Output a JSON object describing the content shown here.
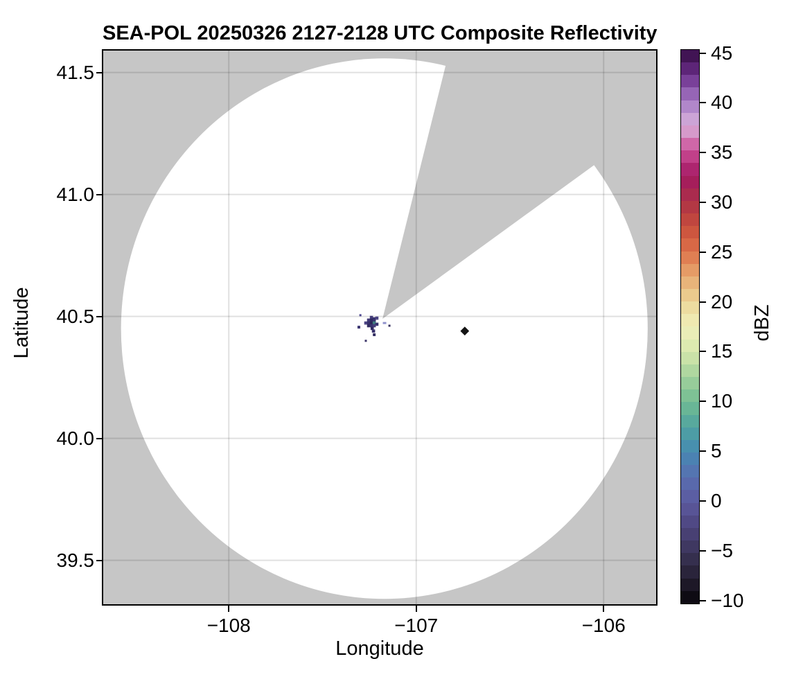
{
  "figure": {
    "title": "SEA-POL 20250326 2127-2128 UTC Composite Reflectivity",
    "xlabel": "Longitude",
    "ylabel": "Latitude",
    "colorbar_label": "dBZ"
  },
  "chart_data": {
    "type": "heatmap",
    "title": "SEA-POL 20250326 2127-2128 UTC Composite Reflectivity",
    "xlabel": "Longitude",
    "ylabel": "Latitude",
    "xlim": [
      -108.67,
      -105.72
    ],
    "ylim": [
      39.32,
      41.59
    ],
    "grid": true,
    "grid_color": "rgba(0,0,0,0.12)",
    "no_data_color": "#c6c6c6",
    "x_ticks": [
      {
        "value": -108,
        "label": "−108"
      },
      {
        "value": -107,
        "label": "−107"
      },
      {
        "value": -106,
        "label": "−106"
      }
    ],
    "y_ticks": [
      {
        "value": 41.5,
        "label": "41.5"
      },
      {
        "value": 41.0,
        "label": "41.0"
      },
      {
        "value": 40.5,
        "label": "40.5"
      },
      {
        "value": 40.0,
        "label": "40.0"
      },
      {
        "value": 39.5,
        "label": "39.5"
      }
    ],
    "radar": {
      "lon": -107.18,
      "lat": 40.49
    },
    "coverage": {
      "fill": "#ffffff",
      "center_lon": -107.17,
      "center_lat": 40.45,
      "radius_lon_deg": 1.405,
      "radius_lat_deg": 1.108,
      "blocked_sector_azimuth_deg": [
        14,
        54
      ]
    },
    "colorbar": {
      "label": "dBZ",
      "min": -10,
      "max": 45,
      "band_step": 1.25,
      "ticks": [
        {
          "value": 45,
          "label": "45"
        },
        {
          "value": 40,
          "label": "40"
        },
        {
          "value": 35,
          "label": "35"
        },
        {
          "value": 30,
          "label": "30"
        },
        {
          "value": 25,
          "label": "25"
        },
        {
          "value": 20,
          "label": "20"
        },
        {
          "value": 15,
          "label": "15"
        },
        {
          "value": 10,
          "label": "10"
        },
        {
          "value": 5,
          "label": "5"
        },
        {
          "value": 0,
          "label": "0"
        },
        {
          "value": -5,
          "label": "−5"
        },
        {
          "value": -10,
          "label": "−10"
        }
      ],
      "anchors": [
        {
          "value": -10,
          "color": "#060409"
        },
        {
          "value": -7.5,
          "color": "#251e31"
        },
        {
          "value": -5,
          "color": "#3a3458"
        },
        {
          "value": -2.5,
          "color": "#4c447c"
        },
        {
          "value": 0,
          "color": "#5c599e"
        },
        {
          "value": 2.5,
          "color": "#586eb0"
        },
        {
          "value": 5,
          "color": "#4689b2"
        },
        {
          "value": 7.5,
          "color": "#4fa3a0"
        },
        {
          "value": 10,
          "color": "#72bc92"
        },
        {
          "value": 12.5,
          "color": "#a3d19c"
        },
        {
          "value": 15,
          "color": "#d7e8ac"
        },
        {
          "value": 17.5,
          "color": "#f0efba"
        },
        {
          "value": 20,
          "color": "#ecd597"
        },
        {
          "value": 22.5,
          "color": "#e7a970"
        },
        {
          "value": 25,
          "color": "#dd7149"
        },
        {
          "value": 27.5,
          "color": "#c74d3c"
        },
        {
          "value": 30,
          "color": "#ac3147"
        },
        {
          "value": 32.5,
          "color": "#a31862"
        },
        {
          "value": 35,
          "color": "#cb4d96"
        },
        {
          "value": 37.5,
          "color": "#d9b3dc"
        },
        {
          "value": 40,
          "color": "#a478c4"
        },
        {
          "value": 42.5,
          "color": "#6b2d8a"
        },
        {
          "value": 45,
          "color": "#330b42"
        }
      ]
    },
    "echoes": [
      {
        "lon": -107.239,
        "lat": 40.496,
        "dbz": -3,
        "color": "#453e7a",
        "shape": "cell",
        "size": 4.6
      },
      {
        "lon": -107.224,
        "lat": 40.49,
        "dbz": -4.5,
        "color": "#39336e",
        "shape": "cell",
        "size": 4.6
      },
      {
        "lon": -107.21,
        "lat": 40.493,
        "dbz": -2.5,
        "color": "#4c4584",
        "shape": "cell",
        "size": 4.6
      },
      {
        "lon": -107.254,
        "lat": 40.485,
        "dbz": -3.5,
        "color": "#423b78",
        "shape": "cell",
        "size": 4.6
      },
      {
        "lon": -107.239,
        "lat": 40.485,
        "dbz": -6,
        "color": "#302a62",
        "shape": "cell",
        "size": 4.6
      },
      {
        "lon": -107.224,
        "lat": 40.482,
        "dbz": -4.5,
        "color": "#39336e",
        "shape": "cell",
        "size": 4.6
      },
      {
        "lon": -107.269,
        "lat": 40.473,
        "dbz": -2.5,
        "color": "#4c4584",
        "shape": "cell",
        "size": 4.6
      },
      {
        "lon": -107.254,
        "lat": 40.473,
        "dbz": -4.5,
        "color": "#39336e",
        "shape": "cell",
        "size": 4.6
      },
      {
        "lon": -107.239,
        "lat": 40.473,
        "dbz": -7,
        "color": "#2b2656",
        "shape": "cell",
        "size": 4.6
      },
      {
        "lon": -107.224,
        "lat": 40.473,
        "dbz": 7,
        "color": "#3e7d80",
        "shape": "cell",
        "size": 4.6
      },
      {
        "lon": -107.21,
        "lat": 40.468,
        "dbz": -4.5,
        "color": "#39336e",
        "shape": "cell",
        "size": 4.6
      },
      {
        "lon": -107.254,
        "lat": 40.462,
        "dbz": -5.5,
        "color": "#332e62",
        "shape": "cell",
        "size": 4.6
      },
      {
        "lon": -107.239,
        "lat": 40.462,
        "dbz": -4.5,
        "color": "#39336e",
        "shape": "cell",
        "size": 4.6
      },
      {
        "lon": -107.224,
        "lat": 40.462,
        "dbz": -3,
        "color": "#453e7a",
        "shape": "cell",
        "size": 4.6
      },
      {
        "lon": -107.235,
        "lat": 40.451,
        "dbz": -6,
        "color": "#302a62",
        "shape": "cell",
        "size": 4.6
      },
      {
        "lon": -107.228,
        "lat": 40.44,
        "dbz": -4.5,
        "color": "#39336e",
        "shape": "cell",
        "size": 4.6
      },
      {
        "lon": -107.298,
        "lat": 40.505,
        "dbz": -2,
        "color": "#4c4690",
        "shape": "dot",
        "size": 3
      },
      {
        "lon": -107.169,
        "lat": 40.473,
        "dbz": 1,
        "color": "#9193cd",
        "shape": "dot",
        "size": 4,
        "w": 5,
        "h": 3
      },
      {
        "lon": -107.143,
        "lat": 40.462,
        "dbz": -5,
        "color": "#37315f",
        "shape": "dot",
        "size": 3
      },
      {
        "lon": -107.306,
        "lat": 40.456,
        "dbz": -4,
        "color": "#3b3570",
        "shape": "dot",
        "size": 4
      },
      {
        "lon": -107.224,
        "lat": 40.425,
        "dbz": -5.5,
        "color": "#332e62",
        "shape": "dot",
        "size": 4
      },
      {
        "lon": -107.269,
        "lat": 40.4,
        "dbz": -4.5,
        "color": "#3a3468",
        "shape": "dot",
        "size": 3
      },
      {
        "lon": -106.741,
        "lat": 40.44,
        "dbz": -9.5,
        "color": "#141414",
        "shape": "diamond",
        "size": 9
      }
    ]
  }
}
